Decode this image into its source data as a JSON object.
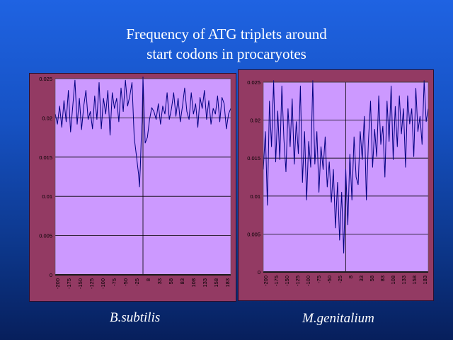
{
  "title": {
    "line1": "Frequency of ATG triplets around",
    "line2": "start codons in procaryotes"
  },
  "colors": {
    "plot_bg": "#cc99ff",
    "frame_bg": "#933a63",
    "series": "#000080",
    "grid": "#000000"
  },
  "chart_data": [
    {
      "type": "line",
      "caption": "B.subtilis",
      "ylim": [
        0,
        0.025
      ],
      "yticks": [
        "0",
        "0.005",
        "0.01",
        "0.015",
        "0.02",
        "0.025"
      ],
      "xticks": [
        "-200",
        "-175",
        "-150",
        "-125",
        "-100",
        "-75",
        "-50",
        "-25",
        "8",
        "33",
        "58",
        "83",
        "108",
        "133",
        "158",
        "183"
      ],
      "xlim": [
        -200,
        200
      ],
      "marker_x": 0,
      "grid": true,
      "series": [
        {
          "x": [
            -200,
            -195,
            -190,
            -185,
            -180,
            -175,
            -170,
            -165,
            -160,
            -155,
            -150,
            -145,
            -140,
            -135,
            -130,
            -125,
            -120,
            -115,
            -110,
            -105,
            -100,
            -95,
            -90,
            -85,
            -80,
            -75,
            -70,
            -65,
            -60,
            -55,
            -50,
            -45,
            -40,
            -35,
            -30,
            -25,
            -20,
            -15,
            -10,
            -8,
            -6,
            -4,
            -2,
            0,
            5,
            10,
            15,
            20,
            25,
            30,
            35,
            40,
            45,
            50,
            55,
            60,
            65,
            70,
            75,
            80,
            85,
            90,
            95,
            100,
            105,
            110,
            115,
            120,
            125,
            130,
            135,
            140,
            145,
            150,
            155,
            160,
            165,
            170,
            175,
            180,
            185,
            190,
            195,
            200
          ],
          "y": [
            0.0205,
            0.0192,
            0.0215,
            0.0188,
            0.0222,
            0.0195,
            0.0235,
            0.0182,
            0.0215,
            0.0248,
            0.0192,
            0.0225,
            0.0185,
            0.0215,
            0.0235,
            0.0198,
            0.0208,
            0.0186,
            0.0228,
            0.0198,
            0.0245,
            0.0186,
            0.0225,
            0.0205,
            0.0235,
            0.0178,
            0.0232,
            0.0212,
            0.0225,
            0.0195,
            0.0238,
            0.0208,
            0.0248,
            0.0215,
            0.0228,
            0.0245,
            0.0175,
            0.0152,
            0.0128,
            0.0112,
            0.0138,
            0.0172,
            0.0195,
            0.0252,
            0.0168,
            0.0175,
            0.0198,
            0.0213,
            0.0208,
            0.0198,
            0.0218,
            0.0192,
            0.0215,
            0.0205,
            0.0232,
            0.0198,
            0.0212,
            0.0232,
            0.0202,
            0.0225,
            0.0195,
            0.0215,
            0.0238,
            0.0208,
            0.0198,
            0.0232,
            0.0205,
            0.0218,
            0.0188,
            0.0226,
            0.0212,
            0.0235,
            0.0198,
            0.0222,
            0.0192,
            0.0212,
            0.0205,
            0.0228,
            0.0195,
            0.0226,
            0.0218,
            0.0186,
            0.0205,
            0.0212
          ]
        }
      ]
    },
    {
      "type": "line",
      "caption": "M.genitalium",
      "ylim": [
        0,
        0.025
      ],
      "yticks": [
        "0",
        "0.005",
        "0.01",
        "0.015",
        "0.02",
        "0.025"
      ],
      "xticks": [
        "-200",
        "-175",
        "-150",
        "-125",
        "-100",
        "-75",
        "-50",
        "-25",
        "8",
        "33",
        "58",
        "83",
        "108",
        "133",
        "158",
        "183"
      ],
      "xlim": [
        -200,
        200
      ],
      "marker_x": 0,
      "grid": true,
      "series": [
        {
          "x": [
            -200,
            -195,
            -190,
            -185,
            -180,
            -175,
            -170,
            -165,
            -160,
            -155,
            -150,
            -145,
            -140,
            -135,
            -130,
            -125,
            -120,
            -115,
            -110,
            -105,
            -100,
            -95,
            -90,
            -85,
            -80,
            -75,
            -70,
            -65,
            -60,
            -55,
            -50,
            -45,
            -40,
            -35,
            -30,
            -25,
            -20,
            -15,
            -10,
            -5,
            0,
            5,
            10,
            15,
            20,
            25,
            30,
            35,
            40,
            45,
            50,
            55,
            60,
            65,
            70,
            75,
            80,
            85,
            90,
            95,
            100,
            105,
            110,
            115,
            120,
            125,
            130,
            135,
            140,
            145,
            150,
            155,
            160,
            165,
            170,
            175,
            180,
            185,
            190,
            195,
            200
          ],
          "y": [
            0.0135,
            0.0185,
            0.0088,
            0.0225,
            0.0165,
            0.0252,
            0.0145,
            0.0212,
            0.0148,
            0.0245,
            0.0175,
            0.0132,
            0.0215,
            0.0165,
            0.0228,
            0.0142,
            0.0198,
            0.0156,
            0.0245,
            0.0118,
            0.0185,
            0.0095,
            0.0172,
            0.0138,
            0.0252,
            0.0142,
            0.0185,
            0.0105,
            0.0165,
            0.0135,
            0.0178,
            0.0112,
            0.0145,
            0.0092,
            0.0135,
            0.0058,
            0.0118,
            0.0042,
            0.0105,
            0.0025,
            0.0135,
            0.0062,
            0.0155,
            0.0095,
            0.0178,
            0.0125,
            0.0115,
            0.0185,
            0.0148,
            0.0205,
            0.0095,
            0.0172,
            0.0225,
            0.0138,
            0.0188,
            0.0152,
            0.0232,
            0.0168,
            0.0192,
            0.0125,
            0.0225,
            0.0172,
            0.0245,
            0.0148,
            0.0218,
            0.0165,
            0.0232,
            0.0182,
            0.0215,
            0.0138,
            0.0232,
            0.0195,
            0.0215,
            0.0152,
            0.0242,
            0.0185,
            0.0205,
            0.0168,
            0.0252,
            0.0198,
            0.0215
          ]
        }
      ]
    }
  ]
}
